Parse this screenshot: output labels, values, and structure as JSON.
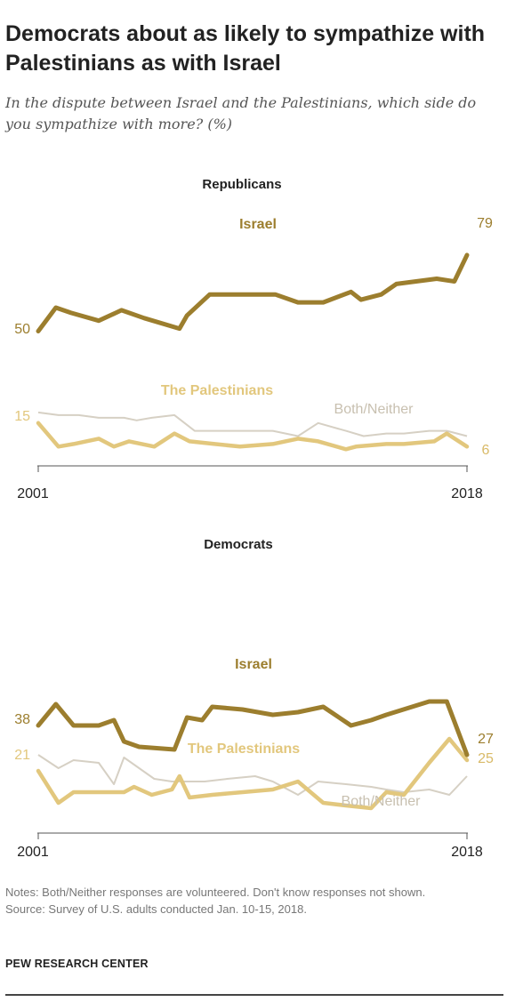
{
  "title": "Democrats about as likely to sympathize with Palestinians as with Israel",
  "subtitle": "In the dispute between Israel and the Palestinians, which side do you sympathize with more? (%)",
  "colors": {
    "israel": "#9C7E2E",
    "palestinians": "#E2C77D",
    "both_neither": "#D6D0C4"
  },
  "chart_data": [
    {
      "type": "line",
      "title": "Republicans",
      "xlim": [
        2001,
        2018
      ],
      "ylim": [
        0,
        100
      ],
      "x_ticks": [
        "2001",
        "2018"
      ],
      "series": [
        {
          "name": "Israel",
          "x": [
            2001,
            2001.7,
            2002.3,
            2003.4,
            2004.3,
            2005.2,
            2006.6,
            2006.9,
            2007.8,
            2009.5,
            2010.4,
            2011.3,
            2012.3,
            2013.4,
            2013.8,
            2014.6,
            2015.2,
            2016.8,
            2017.5,
            2018
          ],
          "y": [
            50,
            59,
            57,
            54,
            58,
            55,
            51,
            56,
            64,
            64,
            64,
            61,
            61,
            65,
            62,
            64,
            68,
            70,
            69,
            79
          ],
          "start_label": "50",
          "end_label": "79"
        },
        {
          "name": "The Palestinians",
          "x": [
            2001,
            2001.8,
            2002.4,
            2003.4,
            2004.0,
            2004.6,
            2005.6,
            2006.4,
            2007.0,
            2008.0,
            2009.0,
            2010.3,
            2011.3,
            2012.1,
            2013.2,
            2013.6,
            2014.8,
            2015.5,
            2016.7,
            2017.2,
            2018
          ],
          "y": [
            15,
            6,
            7,
            9,
            6,
            8,
            6,
            11,
            8,
            7,
            6,
            7,
            9,
            8,
            5,
            6,
            7,
            7,
            8,
            11,
            6
          ],
          "start_label": "15",
          "end_label": "6"
        },
        {
          "name": "Both/Neither",
          "x": [
            2001,
            2001.8,
            2002.6,
            2003.4,
            2004.4,
            2004.9,
            2005.5,
            2006.4,
            2007.2,
            2008.3,
            2009.3,
            2010.3,
            2011.3,
            2012.1,
            2013.2,
            2013.9,
            2014.8,
            2015.5,
            2016.5,
            2017.2,
            2018
          ],
          "y": [
            19,
            18,
            18,
            17,
            17,
            16,
            17,
            18,
            12,
            12,
            12,
            12,
            10,
            15,
            12,
            10,
            11,
            11,
            12,
            12,
            10
          ]
        }
      ]
    },
    {
      "type": "line",
      "title": "Democrats",
      "xlim": [
        2001,
        2018
      ],
      "ylim": [
        0,
        100
      ],
      "x_ticks": [
        "2001",
        "2018"
      ],
      "series": [
        {
          "name": "Israel",
          "x": [
            2001,
            2001.7,
            2002.4,
            2003.4,
            2004.0,
            2004.4,
            2005.0,
            2006.4,
            2006.9,
            2007.5,
            2007.9,
            2009.1,
            2010.3,
            2011.3,
            2012.3,
            2013.4,
            2014.2,
            2014.8,
            2016.5,
            2017.2,
            2018
          ],
          "y": [
            38,
            46,
            38,
            38,
            40,
            32,
            30,
            29,
            41,
            40,
            45,
            44,
            42,
            43,
            45,
            38,
            40,
            42,
            47,
            47,
            27
          ],
          "start_label": "38",
          "end_label": "27"
        },
        {
          "name": "The Palestinians",
          "x": [
            2001,
            2001.8,
            2002.4,
            2003.4,
            2004.4,
            2004.8,
            2005.5,
            2006.3,
            2006.6,
            2007.0,
            2007.9,
            2009.1,
            2010.3,
            2011.3,
            2012.3,
            2013.2,
            2014.2,
            2014.8,
            2015.5,
            2016.5,
            2017.3,
            2018
          ],
          "y": [
            21,
            9,
            13,
            13,
            13,
            15,
            12,
            14,
            19,
            11,
            12,
            13,
            14,
            17,
            9,
            8,
            7,
            13,
            12,
            24,
            33,
            25
          ],
          "start_label": "21",
          "end_label": "25"
        },
        {
          "name": "Both/Neither",
          "x": [
            2001,
            2001.8,
            2002.4,
            2003.4,
            2004.0,
            2004.4,
            2005.0,
            2005.6,
            2006.3,
            2006.9,
            2007.6,
            2008.5,
            2009.6,
            2010.3,
            2011.3,
            2012.1,
            2013.2,
            2014.2,
            2014.8,
            2015.5,
            2016.5,
            2017.3,
            2018
          ],
          "y": [
            27,
            22,
            25,
            24,
            16,
            26,
            22,
            18,
            17,
            17,
            17,
            18,
            19,
            17,
            12,
            17,
            16,
            15,
            14,
            13,
            14,
            12,
            19
          ]
        }
      ]
    }
  ],
  "labels": {
    "rep": {
      "israel": "Israel",
      "palestinians": "The Palestinians",
      "both": "Both/Neither"
    },
    "dem": {
      "israel": "Israel",
      "palestinians": "The Palestinians",
      "both": "Both/Neither"
    }
  },
  "notes": {
    "line1": "Notes: Both/Neither responses are volunteered. Don't know responses not shown.",
    "line2": "Source: Survey of U.S. adults conducted Jan. 10-15, 2018."
  },
  "brand": "PEW RESEARCH CENTER"
}
